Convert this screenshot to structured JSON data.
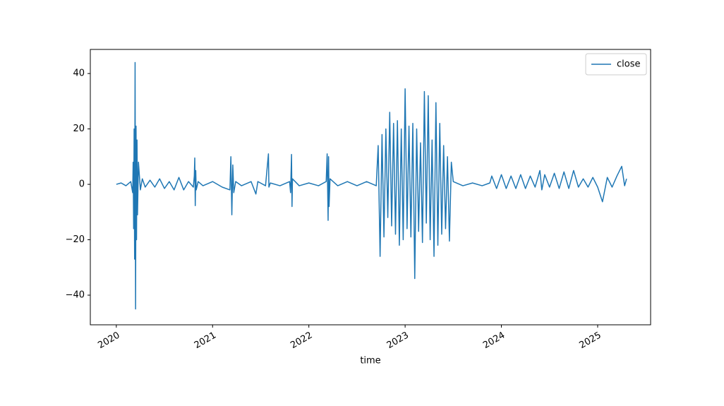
{
  "chart_data": {
    "type": "line",
    "xlabel": "time",
    "x": [
      2020.0,
      2020.05,
      2020.1,
      2020.15,
      2020.17,
      2020.175,
      2020.18,
      2020.185,
      2020.19,
      2020.195,
      2020.2,
      2020.205,
      2020.21,
      2020.215,
      2020.22,
      2020.23,
      2020.25,
      2020.27,
      2020.3,
      2020.35,
      2020.4,
      2020.45,
      2020.5,
      2020.55,
      2020.6,
      2020.65,
      2020.7,
      2020.75,
      2020.8,
      2020.81,
      2020.815,
      2020.82,
      2020.825,
      2020.83,
      2020.85,
      2020.9,
      2021.0,
      2021.1,
      2021.18,
      2021.19,
      2021.2,
      2021.21,
      2021.22,
      2021.24,
      2021.3,
      2021.4,
      2021.45,
      2021.47,
      2021.55,
      2021.58,
      2021.585,
      2021.6,
      2021.7,
      2021.8,
      2021.81,
      2021.82,
      2021.825,
      2021.83,
      2021.9,
      2022.0,
      2022.1,
      2022.18,
      2022.19,
      2022.2,
      2022.205,
      2022.21,
      2022.22,
      2022.3,
      2022.4,
      2022.5,
      2022.6,
      2022.7,
      2022.72,
      2022.74,
      2022.76,
      2022.78,
      2022.8,
      2022.82,
      2022.84,
      2022.86,
      2022.88,
      2022.9,
      2022.92,
      2022.94,
      2022.96,
      2022.98,
      2023.0,
      2023.02,
      2023.04,
      2023.06,
      2023.08,
      2023.1,
      2023.12,
      2023.14,
      2023.16,
      2023.18,
      2023.2,
      2023.22,
      2023.24,
      2023.26,
      2023.28,
      2023.3,
      2023.32,
      2023.34,
      2023.36,
      2023.38,
      2023.4,
      2023.42,
      2023.44,
      2023.46,
      2023.48,
      2023.5,
      2023.6,
      2023.7,
      2023.8,
      2023.88,
      2023.9,
      2023.95,
      2024.0,
      2024.05,
      2024.1,
      2024.15,
      2024.2,
      2024.25,
      2024.3,
      2024.35,
      2024.4,
      2024.42,
      2024.45,
      2024.5,
      2024.55,
      2024.6,
      2024.65,
      2024.7,
      2024.75,
      2024.8,
      2024.85,
      2024.9,
      2024.95,
      2025.0,
      2025.05,
      2025.1,
      2025.15,
      2025.2,
      2025.25,
      2025.28,
      2025.3
    ],
    "series": [
      {
        "name": "close",
        "color": "#1f77b4",
        "values": [
          0,
          0.5,
          -0.5,
          1,
          -3,
          8,
          -16,
          20,
          -27,
          44,
          -45,
          21,
          -20,
          16,
          -11,
          8,
          -2,
          2,
          -1,
          1.5,
          -1,
          2,
          -1.5,
          1,
          -2,
          2.5,
          -2,
          1,
          -1,
          3,
          9.5,
          -7.7,
          5,
          -2,
          1,
          -0.5,
          1,
          -1,
          -2,
          10,
          -11,
          7,
          -3,
          1,
          -0.5,
          1,
          -3.5,
          1,
          -0.5,
          11,
          -1,
          0.5,
          -0.5,
          1,
          -3,
          10.8,
          -8,
          2,
          -0.5,
          0.5,
          -0.5,
          1,
          11,
          -13,
          10,
          -8,
          2,
          -0.5,
          1,
          -0.5,
          1,
          -0.5,
          14,
          -26,
          18,
          -19,
          20,
          -12,
          26,
          -15,
          22,
          -18,
          23,
          -22,
          20,
          -20,
          34.5,
          -16,
          21,
          -19,
          22,
          -34,
          20,
          -17,
          15,
          -21,
          33.5,
          -14,
          32,
          -20,
          16,
          -26,
          29.5,
          -22,
          22,
          -18,
          14,
          -16,
          10,
          -20.5,
          8,
          1,
          -0.5,
          0.5,
          -0.5,
          0.5,
          3,
          -1.5,
          3.5,
          -1.5,
          3,
          -1.5,
          3.5,
          -1.5,
          3,
          -1,
          5,
          -2,
          3.5,
          -1,
          4,
          -1.5,
          4.5,
          -1.5,
          5,
          -1,
          2,
          -1,
          2.5,
          -1,
          -6.3,
          2.5,
          -1,
          3,
          6.5,
          -0.5,
          2
        ]
      }
    ],
    "xlim": [
      2019.73,
      2025.55
    ],
    "xticks": [
      2020,
      2021,
      2022,
      2023,
      2024,
      2025
    ],
    "ylim": [
      -50.7,
      48.7
    ],
    "yticks": [
      {
        "value": -40,
        "label": "−40"
      },
      {
        "value": -20,
        "label": "−20"
      },
      0,
      20,
      40
    ],
    "legend": "upper right"
  }
}
